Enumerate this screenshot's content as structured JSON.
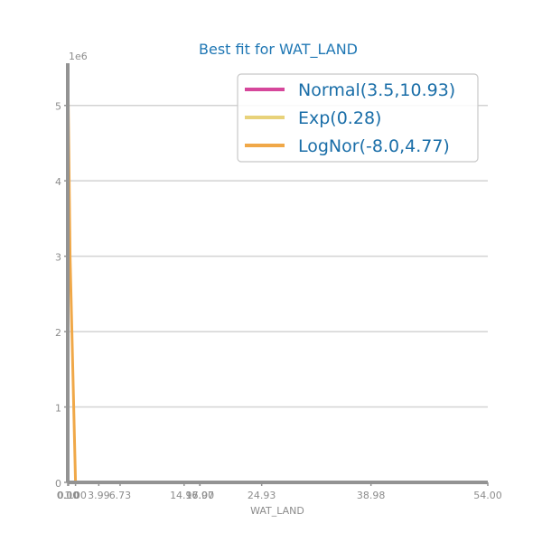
{
  "colors": {
    "title": "#1f77b4",
    "axis": "#939393",
    "grid": "#d3d3d3",
    "tick_text": "#8c8c8c",
    "legend_text": "#1a6ea8",
    "legend_border": "#c8c8c8"
  },
  "chart_data": {
    "type": "line",
    "title": "Best fit for WAT_LAND",
    "xlabel": "WAT_LAND",
    "ylabel": "",
    "y_offset_text": "1e6",
    "xlim": [
      0,
      54.0
    ],
    "ylim": [
      0,
      5560000
    ],
    "x_ticks": [
      0.0,
      0.1,
      1.0,
      3.99,
      6.73,
      14.96,
      16.97,
      17.0,
      24.93,
      38.98,
      54.0
    ],
    "x_tick_labels": [
      "0.00",
      "0.10",
      "1.00",
      "3.99",
      "6.73",
      "14.96",
      "16.97",
      "17.00",
      "24.93",
      "38.98",
      "54.00"
    ],
    "y_ticks": [
      0,
      1000000,
      2000000,
      3000000,
      4000000,
      5000000
    ],
    "y_tick_labels": [
      "0",
      "1",
      "2",
      "3",
      "4",
      "5"
    ],
    "grid": "horizontal",
    "legend_placement": "top-right",
    "series": [
      {
        "name": "Normal(3.5,10.93)",
        "color": "#d6479b",
        "x": [
          0,
          54
        ],
        "y": [
          0,
          0
        ]
      },
      {
        "name": "Exp(0.28)",
        "color": "#e8d27a",
        "x": [
          0,
          54
        ],
        "y": [
          0,
          0
        ]
      },
      {
        "name": "LogNor(-8.0,4.77)",
        "color": "#f0a848",
        "x": [
          0.0,
          0.3,
          1.0,
          54.0
        ],
        "y": [
          5560000,
          3000000,
          0,
          0
        ]
      }
    ]
  }
}
